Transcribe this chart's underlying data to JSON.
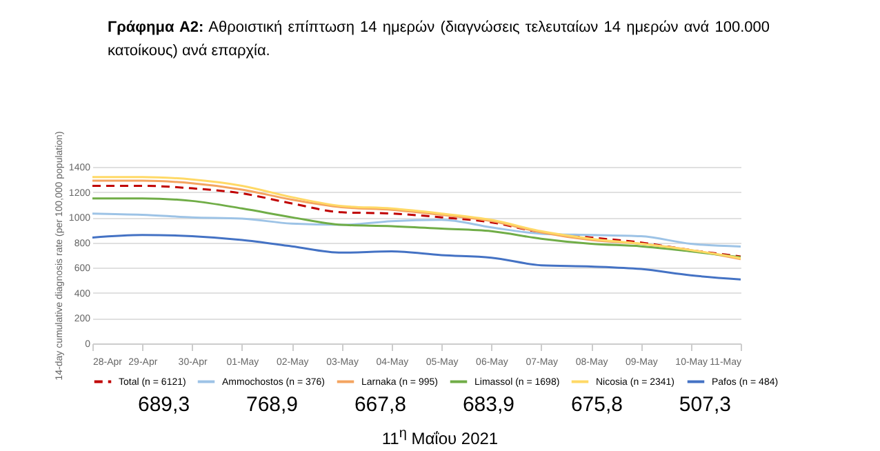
{
  "chart_data": {
    "type": "line",
    "title": "Γράφημα Α2: Αθροιστική επίπτωση 14 ημερών (διαγνώσεις τελευταίων 14 ημερών ανά 100.000 κατοίκους) ανά επαρχία.",
    "ylabel": "14-day cumulative diagnosis rate (per 100,000 population)",
    "categories": [
      "28-Apr",
      "29-Apr",
      "30-Apr",
      "01-May",
      "02-May",
      "03-May",
      "04-May",
      "05-May",
      "06-May",
      "07-May",
      "08-May",
      "09-May",
      "10-May",
      "11-May"
    ],
    "series": [
      {
        "name": "Total (n = 6121)",
        "color": "#c00000",
        "line_style": "dashed",
        "values": [
          1250,
          1250,
          1230,
          1190,
          1110,
          1040,
          1030,
          1000,
          960,
          880,
          840,
          800,
          740,
          689.3
        ]
      },
      {
        "name": "Ammochostos (n = 376)",
        "color": "#9dc3e6",
        "values": [
          1030,
          1020,
          1000,
          990,
          950,
          940,
          970,
          980,
          920,
          870,
          860,
          850,
          790,
          768.9
        ]
      },
      {
        "name": "Larnaka (n = 995)",
        "color": "#f4a460",
        "values": [
          1290,
          1290,
          1270,
          1220,
          1140,
          1080,
          1060,
          1020,
          970,
          880,
          820,
          790,
          740,
          667.8
        ]
      },
      {
        "name": "Limassol (n = 1698)",
        "color": "#70ad47",
        "values": [
          1150,
          1150,
          1130,
          1070,
          1000,
          940,
          930,
          910,
          890,
          830,
          790,
          770,
          730,
          683.9
        ]
      },
      {
        "name": "Nicosia (n = 2341)",
        "color": "#ffd966",
        "values": [
          1320,
          1320,
          1300,
          1250,
          1160,
          1090,
          1070,
          1030,
          980,
          890,
          830,
          790,
          740,
          675.8
        ]
      },
      {
        "name": "Pafos (n = 484)",
        "color": "#4472c4",
        "values": [
          840,
          860,
          850,
          820,
          770,
          720,
          730,
          700,
          680,
          620,
          610,
          590,
          540,
          507.3
        ]
      }
    ],
    "ylim": [
      0,
      1400
    ],
    "yticks": [
      0,
      200,
      400,
      600,
      800,
      1000,
      1200,
      1400
    ],
    "grid": "y",
    "legend": "bottom",
    "line_style": "solid",
    "marker": "none",
    "annotations": [
      "689,3",
      "768,9",
      "667,8",
      "683,9",
      "675,8",
      "507,3",
      "11$^{η}$ Μαΐου 2021"
    ]
  }
}
